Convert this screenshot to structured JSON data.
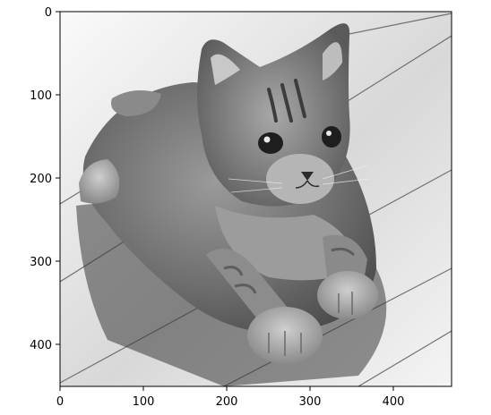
{
  "figure": {
    "image_description_icon": "grayscale-kitten-photo",
    "x_axis": {
      "tick_labels": [
        "0",
        "100",
        "200",
        "300",
        "400"
      ],
      "range": [
        0,
        470
      ]
    },
    "y_axis": {
      "tick_labels": [
        "0",
        "100",
        "200",
        "300",
        "400"
      ],
      "range": [
        0,
        460
      ],
      "inverted": true
    },
    "colors": {
      "axis": "#000000",
      "background": "#ffffff"
    }
  }
}
